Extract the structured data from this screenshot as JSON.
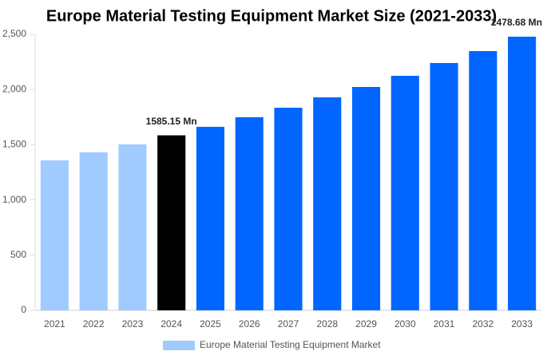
{
  "chart_data": {
    "type": "bar",
    "title": "Europe Material Testing Equipment Market Size (2021-2033)",
    "categories": [
      "2021",
      "2022",
      "2023",
      "2024",
      "2025",
      "2026",
      "2027",
      "2028",
      "2029",
      "2030",
      "2031",
      "2032",
      "2033"
    ],
    "series": [
      {
        "name": "Europe Material Testing Equipment Market",
        "color": "#a0cbff",
        "colors": [
          "#a0cbff",
          "#a0cbff",
          "#a0cbff",
          "#000000",
          "#0066ff",
          "#0066ff",
          "#0066ff",
          "#0066ff",
          "#0066ff",
          "#0066ff",
          "#0066ff",
          "#0066ff",
          "#0066ff"
        ],
        "values": [
          1358,
          1431,
          1503,
          1585.15,
          1662,
          1749,
          1835,
          1929,
          2023,
          2124,
          2240,
          2348,
          2478.68
        ],
        "value_labels": [
          null,
          null,
          null,
          "1585.15 Mn",
          null,
          null,
          null,
          null,
          null,
          null,
          null,
          null,
          "2478.68 Mn"
        ]
      }
    ],
    "ylim": [
      0,
      2500
    ],
    "yticks": [
      0,
      500,
      {
        "value": 1000,
        "label": "1,000"
      },
      {
        "value": 1500,
        "label": "1,500"
      },
      {
        "value": 2000,
        "label": "2,000"
      },
      {
        "value": 2500,
        "label": "2,500"
      }
    ],
    "grid": false
  }
}
